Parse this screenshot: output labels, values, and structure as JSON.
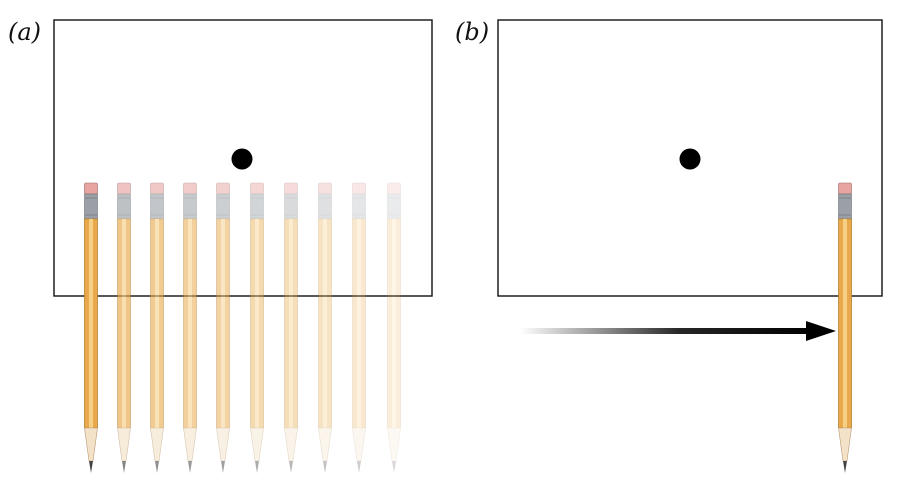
{
  "figure": {
    "panel_a": {
      "label": "(a)",
      "pencil_count": 10
    },
    "panel_b": {
      "label": "(b)",
      "pencil_count": 1
    }
  },
  "colors": {
    "frame": "#111111",
    "dot": "#000000",
    "pencil_body": "#e9a94a",
    "pencil_stripe": "#f6cf86",
    "pencil_edge": "#b07a25",
    "ferrule": "#9aa0a6",
    "eraser": "#e7a4a0",
    "wood": "#f3e2c7",
    "graphite": "#444444",
    "arrow": "#000000"
  },
  "icons": {
    "pencil": "pencil-icon",
    "dot": "dot-icon",
    "arrow": "arrow-right-icon"
  }
}
